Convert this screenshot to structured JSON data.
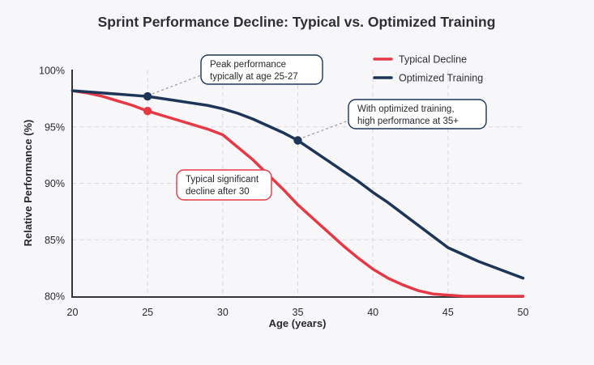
{
  "title": "Sprint Performance Decline: Typical vs. Optimized Training",
  "colors": {
    "typical": "#e63946",
    "optimized": "#1d3557",
    "background": "#f7f7f9",
    "annotation_border_typical": "#e63946",
    "annotation_border_optimized": "#1d3557"
  },
  "legend": {
    "items": [
      {
        "label": "Typical Decline"
      },
      {
        "label": "Optimized Training"
      }
    ]
  },
  "chart_data": {
    "type": "line",
    "title": "Sprint Performance Decline: Typical vs. Optimized Training",
    "xlabel": "Age (years)",
    "ylabel": "Relative Performance (%)",
    "xlim": [
      20,
      50
    ],
    "ylim": [
      80,
      100
    ],
    "x_ticks": [
      20,
      25,
      30,
      35,
      40,
      45,
      50
    ],
    "y_ticks": [
      100,
      95,
      90,
      85,
      80
    ],
    "y_tick_labels": [
      "100%",
      "95%",
      "90%",
      "85%",
      "80%"
    ],
    "grid": "dashed",
    "legend_position": "top-right",
    "x": [
      20,
      21,
      22,
      23,
      24,
      25,
      26,
      27,
      28,
      29,
      30,
      31,
      32,
      33,
      34,
      35,
      36,
      37,
      38,
      39,
      40,
      41,
      42,
      43,
      44,
      45,
      46,
      47,
      48,
      49,
      50
    ],
    "series": [
      {
        "name": "Typical Decline",
        "color": "#e63946",
        "values": [
          98.2,
          98.0,
          97.7,
          97.3,
          96.9,
          96.4,
          96.0,
          95.6,
          95.2,
          94.8,
          94.3,
          93.2,
          92.1,
          90.8,
          89.5,
          88.1,
          86.9,
          85.7,
          84.5,
          83.4,
          82.4,
          81.6,
          81.0,
          80.5,
          80.2,
          80.1,
          80.0,
          80.0,
          80.0,
          80.0,
          80.0
        ]
      },
      {
        "name": "Optimized Training",
        "color": "#1d3557",
        "values": [
          98.2,
          98.1,
          98.0,
          97.9,
          97.8,
          97.7,
          97.5,
          97.3,
          97.1,
          96.9,
          96.6,
          96.2,
          95.7,
          95.1,
          94.5,
          93.8,
          92.9,
          92.0,
          91.1,
          90.2,
          89.2,
          88.3,
          87.3,
          86.3,
          85.3,
          84.3,
          83.7,
          83.1,
          82.6,
          82.1,
          81.6
        ]
      }
    ],
    "markers": [
      {
        "series": "Typical Decline",
        "x": 25,
        "y": 96.4
      },
      {
        "series": "Optimized Training",
        "x": 25,
        "y": 97.7
      },
      {
        "series": "Optimized Training",
        "x": 35,
        "y": 93.8
      }
    ]
  },
  "annotations": [
    {
      "line1": "Peak performance",
      "line2": "typically at age 25-27",
      "target_series": "Optimized Training",
      "target_x": 25
    },
    {
      "line1": "With optimized training,",
      "line2": "high performance at 35+",
      "target_series": "Optimized Training",
      "target_x": 35
    },
    {
      "line1": "Typical significant",
      "line2": "decline after 30",
      "target_series": "Typical Decline",
      "target_x": 30
    }
  ]
}
